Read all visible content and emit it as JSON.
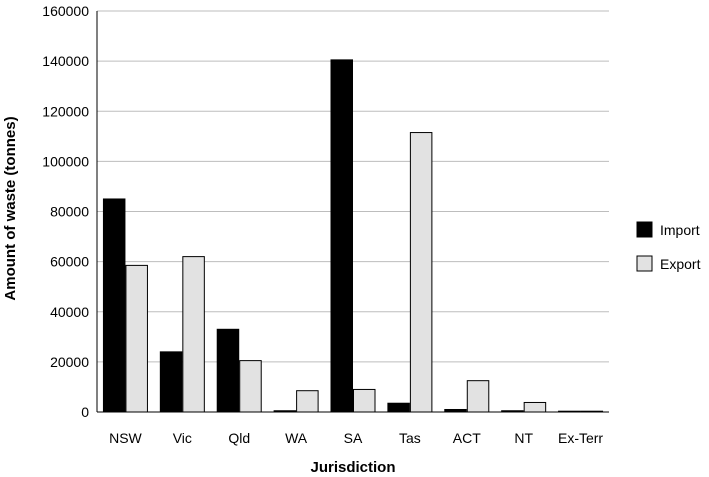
{
  "chart_data": {
    "type": "bar",
    "title": "",
    "xlabel": "Jurisdiction",
    "ylabel": "Amount of waste (tonnes)",
    "ylim": [
      0,
      160000
    ],
    "yticks": [
      "0",
      "20000",
      "40000",
      "60000",
      "80000",
      "100000",
      "120000",
      "140000",
      "160000"
    ],
    "categories": [
      "NSW",
      "Vic",
      "Qld",
      "WA",
      "SA",
      "Tas",
      "ACT",
      "NT",
      "Ex-Terr"
    ],
    "series": [
      {
        "name": "Import",
        "color": "#000000",
        "values": [
          85000,
          24000,
          33000,
          500,
          140500,
          3500,
          1000,
          500,
          0
        ]
      },
      {
        "name": "Export",
        "color": "#e2e2e2",
        "values": [
          58500,
          62000,
          20500,
          8500,
          9000,
          111500,
          12500,
          3800,
          300
        ]
      }
    ],
    "grid": true,
    "legend_position": "right"
  }
}
